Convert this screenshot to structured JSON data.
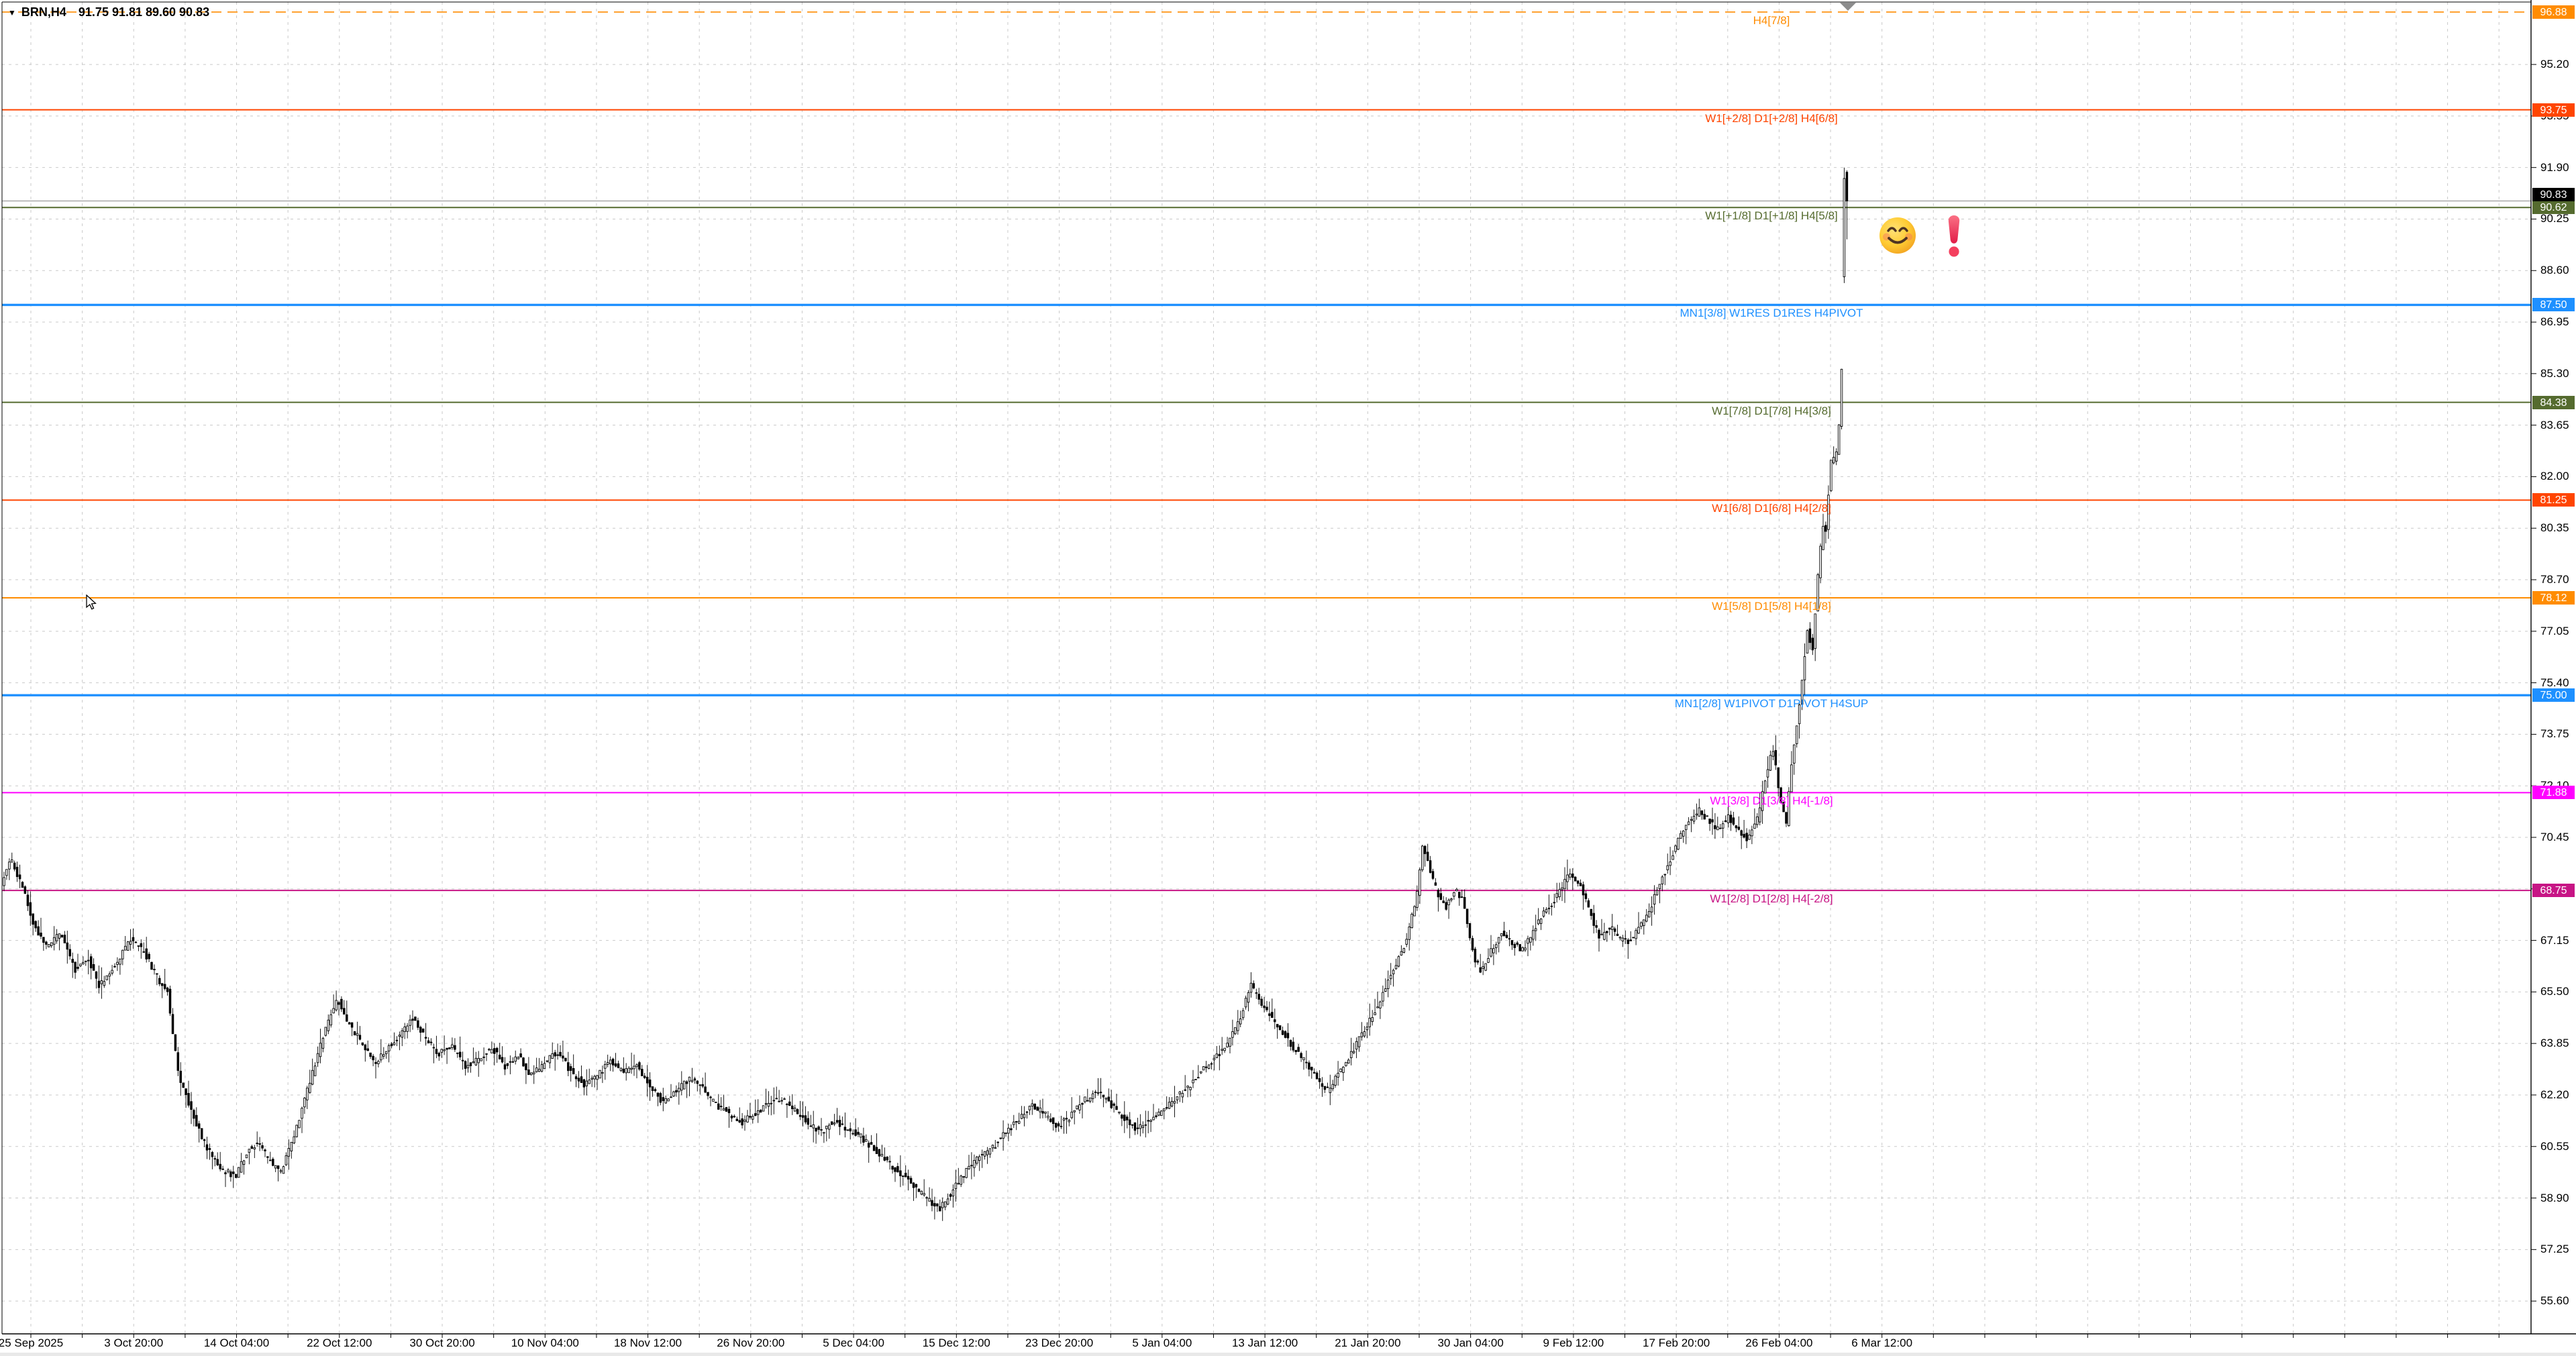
{
  "window": {
    "symbol_dropdown": "▼",
    "symbol": "BRN,H4",
    "ohlc_line": "91.75 91.81 89.60 90.83"
  },
  "price_axis": {
    "ticks": [
      "95.20",
      "93.55",
      "91.90",
      "90.25",
      "88.60",
      "86.95",
      "85.30",
      "83.65",
      "82.00",
      "80.35",
      "78.70",
      "77.05",
      "75.40",
      "73.75",
      "72.10",
      "70.45",
      "68.80",
      "67.15",
      "65.50",
      "63.85",
      "62.20",
      "60.55",
      "58.90",
      "57.25",
      "55.60"
    ],
    "current_price_badge": {
      "value": "90.83",
      "bg": "#000000",
      "fg": "#FFFFFF"
    }
  },
  "time_axis": {
    "labels": [
      "25 Sep 2025",
      "3 Oct 20:00",
      "14 Oct 04:00",
      "22 Oct 12:00",
      "30 Oct 20:00",
      "10 Nov 04:00",
      "18 Nov 12:00",
      "26 Nov 20:00",
      "5 Dec 04:00",
      "15 Dec 12:00",
      "23 Dec 20:00",
      "5 Jan 04:00",
      "13 Jan 12:00",
      "21 Jan 20:00",
      "30 Jan 04:00",
      "9 Feb 12:00",
      "17 Feb 20:00",
      "26 Feb 04:00",
      "6 Mar 12:00"
    ]
  },
  "levels": [
    {
      "price": 96.88,
      "badge": "96.88",
      "label": "H4[7/8]",
      "color": "#FF8C00",
      "style": "dashed",
      "width": 1.6
    },
    {
      "price": 93.75,
      "badge": "93.75",
      "label": "W1[+2/8] D1[+2/8] H4[6/8]",
      "color": "#FF4500",
      "style": "solid",
      "width": 2
    },
    {
      "price": 90.62,
      "badge": "90.62",
      "label": "W1[+1/8] D1[+1/8] H4[5/8]",
      "color": "#556B2F",
      "style": "solid",
      "width": 2
    },
    {
      "price": 87.5,
      "badge": "87.50",
      "label": "MN1[3/8] W1RES D1RES H4PIVOT",
      "color": "#1E90FF",
      "style": "solid",
      "width": 3.4
    },
    {
      "price": 84.38,
      "badge": "84.38",
      "label": "W1[7/8] D1[7/8] H4[3/8]",
      "color": "#556B2F",
      "style": "solid",
      "width": 2
    },
    {
      "price": 81.25,
      "badge": "81.25",
      "label": "W1[6/8] D1[6/8] H4[2/8]",
      "color": "#FF4500",
      "style": "solid",
      "width": 2
    },
    {
      "price": 78.12,
      "badge": "78.12",
      "label": "W1[5/8] D1[5/8] H4[1/8]",
      "color": "#FF8C00",
      "style": "solid",
      "width": 2
    },
    {
      "price": 75.0,
      "badge": "75.00",
      "label": "MN1[2/8] W1PIVOT D1PIVOT H4SUP",
      "color": "#1E90FF",
      "style": "solid",
      "width": 3.4
    },
    {
      "price": 71.88,
      "badge": "71.88",
      "label": "W1[3/8] D1[3/8] H4[-1/8]",
      "color": "#FF00FF",
      "style": "solid",
      "width": 2
    },
    {
      "price": 68.75,
      "badge": "68.75",
      "label": "W1[2/8] D1[2/8] H4[-2/8]",
      "color": "#C71585",
      "style": "solid",
      "width": 2
    }
  ],
  "current_price": {
    "value": 90.83,
    "line_color": "#A8A8A8"
  },
  "annotations": [
    {
      "type": "emoji",
      "name": "smiling-face-with-smiling-eyes"
    },
    {
      "type": "emoji",
      "name": "red-exclamation-mark"
    }
  ],
  "grid": {
    "color": "#C9C9C9",
    "candle_up_fill": "#FFFFFF",
    "candle_down_fill": "#000000",
    "candle_stroke": "#000000"
  },
  "chart_data": {
    "type": "candlestick",
    "symbol": "BRN",
    "timeframe": "H4",
    "title": "BRN,H4",
    "last_bar": {
      "open": 91.75,
      "high": 91.81,
      "low": 89.6,
      "close": 90.83
    },
    "price_axis_range": [
      55.6,
      96.88
    ],
    "x_range": [
      "25 Sep 2025",
      "6 Mar 12:00"
    ],
    "bars": 700,
    "murrey_levels": [
      96.88,
      93.75,
      90.62,
      87.5,
      84.38,
      81.25,
      78.12,
      75.0,
      71.88,
      68.75
    ],
    "price_path": [
      [
        0.0,
        68.9
      ],
      [
        0.005,
        69.8
      ],
      [
        0.011,
        68.9
      ],
      [
        0.018,
        67.6
      ],
      [
        0.025,
        66.9
      ],
      [
        0.032,
        67.4
      ],
      [
        0.04,
        66.2
      ],
      [
        0.047,
        66.6
      ],
      [
        0.053,
        65.7
      ],
      [
        0.061,
        66.3
      ],
      [
        0.07,
        67.2
      ],
      [
        0.077,
        66.8
      ],
      [
        0.085,
        65.9
      ],
      [
        0.09,
        65.5
      ],
      [
        0.096,
        62.8
      ],
      [
        0.103,
        61.7
      ],
      [
        0.111,
        60.5
      ],
      [
        0.12,
        59.8
      ],
      [
        0.127,
        59.6
      ],
      [
        0.133,
        60.4
      ],
      [
        0.139,
        60.7
      ],
      [
        0.145,
        60.1
      ],
      [
        0.151,
        59.7
      ],
      [
        0.159,
        61.0
      ],
      [
        0.167,
        62.6
      ],
      [
        0.174,
        64.0
      ],
      [
        0.182,
        65.3
      ],
      [
        0.188,
        64.5
      ],
      [
        0.195,
        63.9
      ],
      [
        0.202,
        63.2
      ],
      [
        0.209,
        63.7
      ],
      [
        0.217,
        64.2
      ],
      [
        0.223,
        64.7
      ],
      [
        0.23,
        64.0
      ],
      [
        0.237,
        63.5
      ],
      [
        0.244,
        63.8
      ],
      [
        0.251,
        63.1
      ],
      [
        0.258,
        63.3
      ],
      [
        0.266,
        63.7
      ],
      [
        0.273,
        63.1
      ],
      [
        0.28,
        63.5
      ],
      [
        0.287,
        62.8
      ],
      [
        0.294,
        63.2
      ],
      [
        0.301,
        63.6
      ],
      [
        0.308,
        63.0
      ],
      [
        0.316,
        62.5
      ],
      [
        0.323,
        62.8
      ],
      [
        0.33,
        63.3
      ],
      [
        0.337,
        62.9
      ],
      [
        0.344,
        63.2
      ],
      [
        0.351,
        62.5
      ],
      [
        0.358,
        62.0
      ],
      [
        0.365,
        62.3
      ],
      [
        0.373,
        62.7
      ],
      [
        0.38,
        62.4
      ],
      [
        0.387,
        61.9
      ],
      [
        0.394,
        61.6
      ],
      [
        0.401,
        61.3
      ],
      [
        0.408,
        61.6
      ],
      [
        0.415,
        61.9
      ],
      [
        0.422,
        62.1
      ],
      [
        0.43,
        61.7
      ],
      [
        0.437,
        61.3
      ],
      [
        0.444,
        61.0
      ],
      [
        0.451,
        61.4
      ],
      [
        0.458,
        61.1
      ],
      [
        0.465,
        60.9
      ],
      [
        0.472,
        60.5
      ],
      [
        0.479,
        60.1
      ],
      [
        0.487,
        59.7
      ],
      [
        0.494,
        59.3
      ],
      [
        0.501,
        58.9
      ],
      [
        0.508,
        58.5
      ],
      [
        0.515,
        59.1
      ],
      [
        0.522,
        59.7
      ],
      [
        0.529,
        60.2
      ],
      [
        0.537,
        60.5
      ],
      [
        0.544,
        61.0
      ],
      [
        0.551,
        61.4
      ],
      [
        0.558,
        61.9
      ],
      [
        0.565,
        61.6
      ],
      [
        0.572,
        61.2
      ],
      [
        0.579,
        61.5
      ],
      [
        0.586,
        62.0
      ],
      [
        0.594,
        62.3
      ],
      [
        0.601,
        61.9
      ],
      [
        0.608,
        61.5
      ],
      [
        0.615,
        61.1
      ],
      [
        0.622,
        61.4
      ],
      [
        0.629,
        61.7
      ],
      [
        0.636,
        62.1
      ],
      [
        0.644,
        62.5
      ],
      [
        0.651,
        63.0
      ],
      [
        0.658,
        63.4
      ],
      [
        0.665,
        63.9
      ],
      [
        0.671,
        64.6
      ],
      [
        0.677,
        65.7
      ],
      [
        0.684,
        65.0
      ],
      [
        0.692,
        64.4
      ],
      [
        0.699,
        63.8
      ],
      [
        0.706,
        63.3
      ],
      [
        0.713,
        62.7
      ],
      [
        0.718,
        62.3
      ],
      [
        0.726,
        63.0
      ],
      [
        0.733,
        63.7
      ],
      [
        0.74,
        64.4
      ],
      [
        0.747,
        65.2
      ],
      [
        0.754,
        66.2
      ],
      [
        0.761,
        67.1
      ],
      [
        0.767,
        68.6
      ],
      [
        0.77,
        70.2
      ],
      [
        0.775,
        69.2
      ],
      [
        0.779,
        68.5
      ],
      [
        0.783,
        68.2
      ],
      [
        0.788,
        68.8
      ],
      [
        0.792,
        68.4
      ],
      [
        0.798,
        66.6
      ],
      [
        0.802,
        66.1
      ],
      [
        0.807,
        66.8
      ],
      [
        0.813,
        67.4
      ],
      [
        0.818,
        67.1
      ],
      [
        0.824,
        66.8
      ],
      [
        0.829,
        67.3
      ],
      [
        0.834,
        67.9
      ],
      [
        0.84,
        68.3
      ],
      [
        0.845,
        68.8
      ],
      [
        0.85,
        69.3
      ],
      [
        0.856,
        68.9
      ],
      [
        0.861,
        68.0
      ],
      [
        0.866,
        67.2
      ],
      [
        0.872,
        67.6
      ],
      [
        0.877,
        67.2
      ],
      [
        0.882,
        67.1
      ],
      [
        0.888,
        67.6
      ],
      [
        0.893,
        68.1
      ],
      [
        0.898,
        68.9
      ],
      [
        0.904,
        69.7
      ],
      [
        0.909,
        70.4
      ],
      [
        0.914,
        70.9
      ],
      [
        0.92,
        71.3
      ],
      [
        0.925,
        71.0
      ],
      [
        0.93,
        70.7
      ],
      [
        0.936,
        71.1
      ],
      [
        0.941,
        70.7
      ],
      [
        0.946,
        70.4
      ],
      [
        0.952,
        71.1
      ],
      [
        0.956,
        72.4
      ],
      [
        0.96,
        73.3
      ],
      [
        0.963,
        72.0
      ],
      [
        0.967,
        70.8
      ],
      [
        0.97,
        72.8
      ],
      [
        0.974,
        74.6
      ],
      [
        0.977,
        76.2
      ],
      [
        0.979,
        77.3
      ],
      [
        0.981,
        76.2
      ],
      [
        0.984,
        78.6
      ],
      [
        0.987,
        80.6
      ],
      [
        0.988,
        79.7
      ],
      [
        0.99,
        81.5
      ],
      [
        0.992,
        82.9
      ],
      [
        0.994,
        82.1
      ],
      [
        0.995,
        84.3
      ],
      [
        0.996,
        83.4
      ],
      [
        0.997,
        85.3
      ],
      [
        0.998,
        86.5
      ],
      [
        0.999,
        88.9
      ],
      [
        1.0,
        90.8
      ]
    ]
  }
}
